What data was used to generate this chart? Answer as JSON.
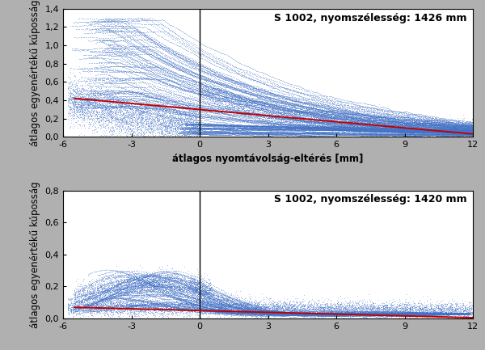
{
  "title1": "S 1002, nyomszélesség: 1426 mm",
  "title2": "S 1002, nyomszélesség: 1420 mm",
  "xlabel": "átlagos nyomtávolság-eltérés [mm]",
  "ylabel": "átlagos egyenértékű kúposság",
  "xlim": [
    -6,
    12
  ],
  "ylim1": [
    0,
    1.4
  ],
  "ylim2": [
    0,
    0.8
  ],
  "xticks": [
    -6,
    -3,
    0,
    3,
    6,
    9,
    12
  ],
  "yticks1": [
    0,
    0.2,
    0.4,
    0.6,
    0.8,
    1.0,
    1.2,
    1.4
  ],
  "yticks2": [
    0,
    0.2,
    0.4,
    0.6,
    0.8
  ],
  "scatter_color": "#4472C4",
  "line_color": "#C00000",
  "bg_color": "#B0B0B0",
  "plot_bg": "#FFFFFF",
  "title_fontsize": 9,
  "label_fontsize": 8.5,
  "tick_fontsize": 8,
  "line1_x0": -5.5,
  "line1_x1": 12.0,
  "line1_y0": 0.42,
  "line1_y1": 0.03,
  "line2_x0": -5.5,
  "line2_x1": 12.0,
  "line2_y0": 0.07,
  "line2_y1": 0.005
}
